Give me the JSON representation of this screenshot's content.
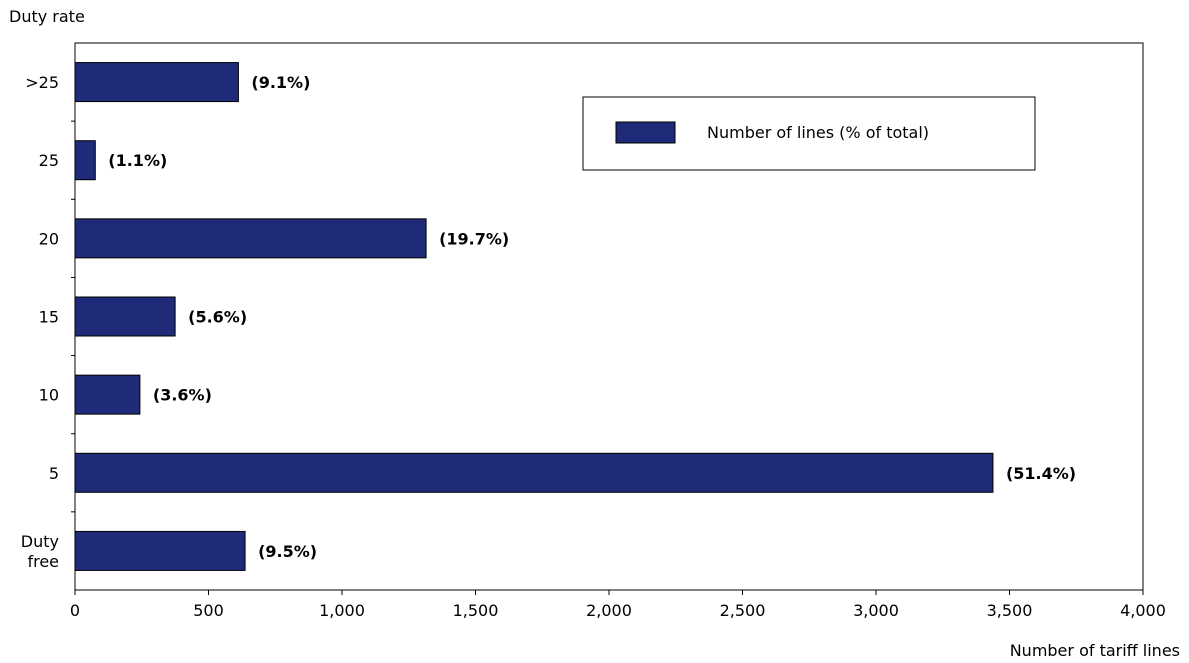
{
  "chart_data": {
    "type": "bar",
    "orientation": "horizontal",
    "ylabel": "Duty rate",
    "xlabel": "Number of tariff lines",
    "categories": [
      ">25",
      "25",
      "20",
      "15",
      "10",
      "5",
      [
        "Duty",
        "free"
      ]
    ],
    "series": [
      {
        "name": "Number of lines (% of total)",
        "color": "#1f2a78",
        "values": [
          612,
          76,
          1315,
          375,
          243,
          3438,
          637
        ],
        "labels": [
          "(9.1%)",
          "(1.1%)",
          "(19.7%)",
          "(5.6%)",
          "(3.6%)",
          "(51.4%)",
          "(9.5%)"
        ]
      }
    ],
    "xlim": [
      0,
      4000
    ],
    "xticks": [
      0,
      500,
      1000,
      1500,
      2000,
      2500,
      3000,
      3500,
      4000
    ],
    "xtick_labels": [
      "0",
      "500",
      "1,000",
      "1,500",
      "2,000",
      "2,500",
      "3,000",
      "3,500",
      "4,000"
    ],
    "grid": false,
    "legend": "top-right"
  }
}
